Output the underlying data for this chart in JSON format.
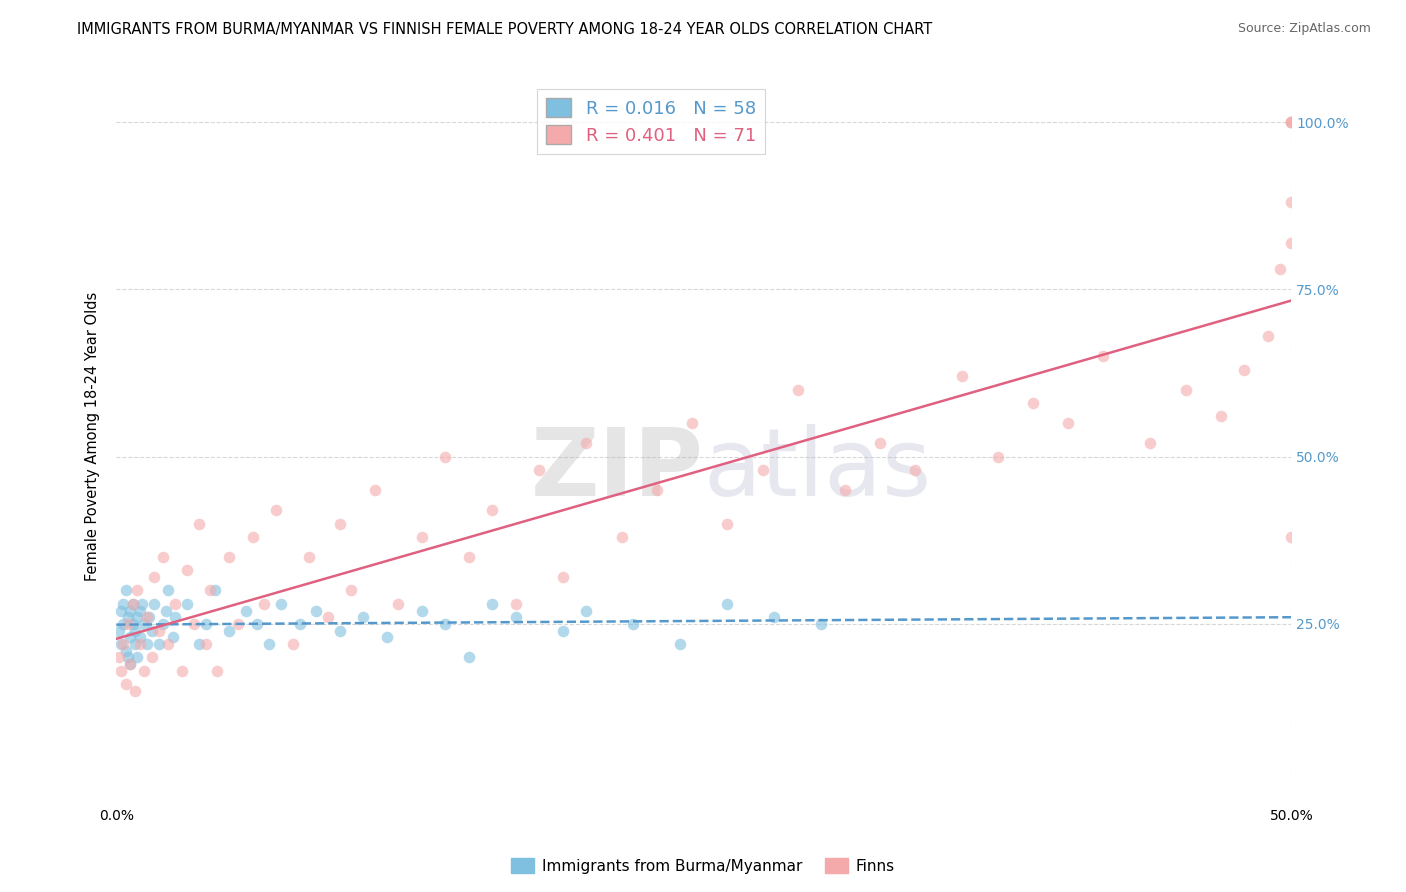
{
  "title": "IMMIGRANTS FROM BURMA/MYANMAR VS FINNISH FEMALE POVERTY AMONG 18-24 YEAR OLDS CORRELATION CHART",
  "source": "Source: ZipAtlas.com",
  "ylabel": "Female Poverty Among 18-24 Year Olds",
  "watermark_zip": "ZIP",
  "watermark_atlas": "atlas",
  "xlim": [
    0.0,
    0.5
  ],
  "ylim": [
    -0.02,
    1.08
  ],
  "legend_r1": "R = 0.016",
  "legend_n1": "N = 58",
  "legend_r2": "R = 0.401",
  "legend_n2": "N = 71",
  "color_burma": "#7fbfdf",
  "color_finns": "#f4aaaa",
  "trend_burma_color": "#5599cc",
  "trend_finns_color": "#e06080",
  "right_tick_color": "#5599cc",
  "background_color": "#ffffff",
  "grid_color": "#d8d8d8",
  "burma_x": [
    0.001,
    0.002,
    0.002,
    0.003,
    0.003,
    0.004,
    0.004,
    0.005,
    0.005,
    0.006,
    0.006,
    0.006,
    0.007,
    0.007,
    0.008,
    0.008,
    0.009,
    0.009,
    0.01,
    0.01,
    0.011,
    0.012,
    0.013,
    0.014,
    0.015,
    0.016,
    0.018,
    0.02,
    0.021,
    0.022,
    0.024,
    0.025,
    0.03,
    0.035,
    0.038,
    0.042,
    0.048,
    0.055,
    0.06,
    0.065,
    0.07,
    0.078,
    0.085,
    0.095,
    0.105,
    0.115,
    0.13,
    0.14,
    0.15,
    0.16,
    0.17,
    0.19,
    0.2,
    0.22,
    0.24,
    0.26,
    0.28,
    0.3
  ],
  "burma_y": [
    0.24,
    0.27,
    0.22,
    0.25,
    0.28,
    0.21,
    0.3,
    0.2,
    0.26,
    0.23,
    0.27,
    0.19,
    0.25,
    0.28,
    0.22,
    0.24,
    0.2,
    0.26,
    0.23,
    0.27,
    0.28,
    0.25,
    0.22,
    0.26,
    0.24,
    0.28,
    0.22,
    0.25,
    0.27,
    0.3,
    0.23,
    0.26,
    0.28,
    0.22,
    0.25,
    0.3,
    0.24,
    0.27,
    0.25,
    0.22,
    0.28,
    0.25,
    0.27,
    0.24,
    0.26,
    0.23,
    0.27,
    0.25,
    0.2,
    0.28,
    0.26,
    0.24,
    0.27,
    0.25,
    0.22,
    0.28,
    0.26,
    0.25
  ],
  "finns_x": [
    0.001,
    0.002,
    0.003,
    0.004,
    0.005,
    0.006,
    0.007,
    0.008,
    0.009,
    0.01,
    0.012,
    0.013,
    0.015,
    0.016,
    0.018,
    0.02,
    0.022,
    0.025,
    0.028,
    0.03,
    0.033,
    0.035,
    0.038,
    0.04,
    0.043,
    0.048,
    0.052,
    0.058,
    0.063,
    0.068,
    0.075,
    0.082,
    0.09,
    0.095,
    0.1,
    0.11,
    0.12,
    0.13,
    0.14,
    0.15,
    0.16,
    0.17,
    0.18,
    0.19,
    0.2,
    0.215,
    0.23,
    0.245,
    0.26,
    0.275,
    0.29,
    0.31,
    0.325,
    0.34,
    0.36,
    0.375,
    0.39,
    0.405,
    0.42,
    0.44,
    0.455,
    0.47,
    0.48,
    0.49,
    0.495,
    0.5,
    0.5,
    0.5,
    0.5,
    0.5,
    0.5
  ],
  "finns_y": [
    0.2,
    0.18,
    0.22,
    0.16,
    0.25,
    0.19,
    0.28,
    0.15,
    0.3,
    0.22,
    0.18,
    0.26,
    0.2,
    0.32,
    0.24,
    0.35,
    0.22,
    0.28,
    0.18,
    0.33,
    0.25,
    0.4,
    0.22,
    0.3,
    0.18,
    0.35,
    0.25,
    0.38,
    0.28,
    0.42,
    0.22,
    0.35,
    0.26,
    0.4,
    0.3,
    0.45,
    0.28,
    0.38,
    0.5,
    0.35,
    0.42,
    0.28,
    0.48,
    0.32,
    0.52,
    0.38,
    0.45,
    0.55,
    0.4,
    0.48,
    0.6,
    0.45,
    0.52,
    0.48,
    0.62,
    0.5,
    0.58,
    0.55,
    0.65,
    0.52,
    0.6,
    0.56,
    0.63,
    0.68,
    0.78,
    0.82,
    0.88,
    1.0,
    1.0,
    1.0,
    0.38
  ]
}
